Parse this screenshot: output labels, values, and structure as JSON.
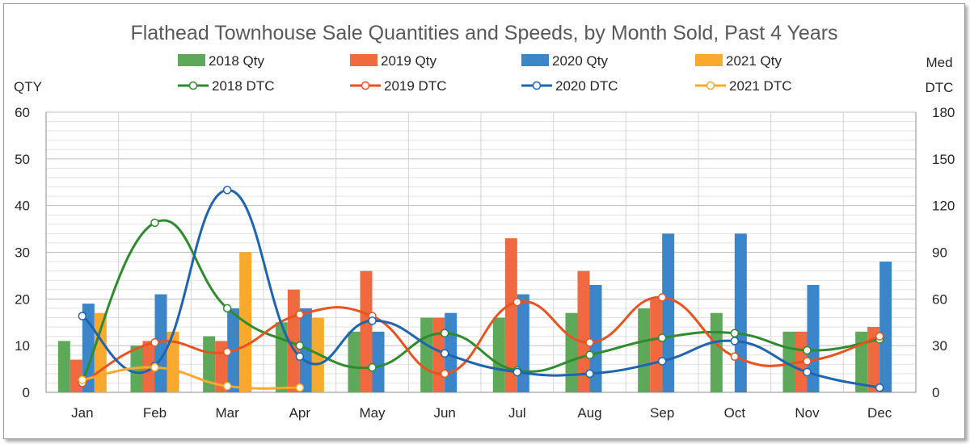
{
  "chart_data": {
    "type": "bar",
    "title": "Flathead Townhouse Sale Quantities and Speeds, by Month Sold, Past 4 Years",
    "categories": [
      "Jan",
      "Feb",
      "Mar",
      "Apr",
      "May",
      "Jun",
      "Jul",
      "Aug",
      "Sep",
      "Oct",
      "Nov",
      "Dec"
    ],
    "y_left": {
      "label": "QTY",
      "min": 0,
      "max": 60,
      "ticks": [
        0,
        10,
        20,
        30,
        40,
        50,
        60
      ]
    },
    "y_right": {
      "label_line1": "Med",
      "label_line2": "DTC",
      "min": 0,
      "max": 180,
      "ticks": [
        0,
        30,
        60,
        90,
        120,
        150,
        180
      ]
    },
    "grid": true,
    "legend_position": "top",
    "bar_series": [
      {
        "name": "2018 Qty",
        "color": "#5ea85a",
        "values": [
          11,
          10,
          12,
          15,
          13,
          16,
          16,
          17,
          18,
          17,
          13,
          13
        ]
      },
      {
        "name": "2019 Qty",
        "color": "#f0693f",
        "values": [
          7,
          11,
          11,
          22,
          26,
          16,
          33,
          26,
          20,
          null,
          13,
          14
        ]
      },
      {
        "name": "2020 Qty",
        "color": "#3b86c8",
        "values": [
          19,
          21,
          18,
          18,
          13,
          17,
          21,
          23,
          34,
          34,
          23,
          28
        ]
      },
      {
        "name": "2021 Qty",
        "color": "#f9a92d",
        "values": [
          17,
          13,
          30,
          16,
          null,
          null,
          null,
          null,
          null,
          null,
          null,
          null
        ]
      }
    ],
    "line_series": [
      {
        "name": "2018 DTC",
        "color": "#2e8b2e",
        "values": [
          7,
          109,
          54,
          30,
          16,
          38,
          14,
          24,
          35,
          38,
          27,
          34
        ]
      },
      {
        "name": "2019 DTC",
        "color": "#e8531f",
        "values": [
          6,
          32,
          26,
          50,
          49,
          12,
          58,
          32,
          61,
          23,
          20,
          36
        ]
      },
      {
        "name": "2020 DTC",
        "color": "#1f64b0",
        "values": [
          49,
          17,
          130,
          23,
          46,
          25,
          13,
          12,
          20,
          33,
          13,
          3
        ]
      },
      {
        "name": "2021 DTC",
        "color": "#f9a92d",
        "values": [
          8,
          16,
          4,
          3,
          null,
          null,
          null,
          null,
          null,
          null,
          null,
          null
        ]
      }
    ]
  }
}
